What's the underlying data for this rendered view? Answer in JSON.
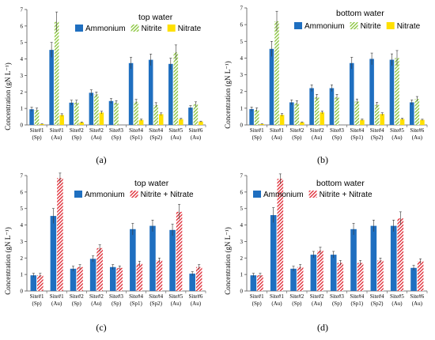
{
  "panels": [
    {
      "id": "a",
      "panel_label": "(a)",
      "chart_data": {
        "type": "bar",
        "title": "top water",
        "ylabel": "Concentration (gN L⁻¹)",
        "ylim": [
          0,
          7
        ],
        "yticks": [
          0,
          1,
          2,
          3,
          4,
          5,
          6,
          7
        ],
        "categories": [
          [
            "Site#1",
            "(Sp)"
          ],
          [
            "Site#1",
            "(Au)"
          ],
          [
            "Site#2",
            "(Sp)"
          ],
          [
            "Site#2",
            "(Au)"
          ],
          [
            "Site#3",
            "(Sp)"
          ],
          [
            "Site#4",
            "(Sp1)"
          ],
          [
            "Site#4",
            "(Sp2)"
          ],
          [
            "Site#5",
            "(Au)"
          ],
          [
            "Site#6",
            "(Au)"
          ]
        ],
        "series": [
          {
            "name": "Ammonium",
            "style": "solid",
            "color": "#1f6fc0",
            "values": [
              0.95,
              4.55,
              1.35,
              1.95,
              1.45,
              3.75,
              3.95,
              3.7,
              1.05
            ],
            "errors": [
              0.12,
              0.45,
              0.15,
              0.18,
              0.15,
              0.35,
              0.35,
              0.35,
              0.12
            ]
          },
          {
            "name": "Nitrite",
            "style": "hatch",
            "color": "#8cc63f",
            "values": [
              0.9,
              6.25,
              1.35,
              1.85,
              1.35,
              1.4,
              1.2,
              4.4,
              1.25
            ],
            "errors": [
              0.12,
              0.6,
              0.15,
              0.15,
              0.12,
              0.15,
              0.15,
              0.45,
              0.15
            ]
          },
          {
            "name": "Nitrate",
            "style": "solid",
            "color": "#ffe000",
            "values": [
              0.05,
              0.6,
              0.15,
              0.75,
              0.0,
              0.3,
              0.65,
              0.35,
              0.2
            ],
            "errors": [
              0.02,
              0.08,
              0.03,
              0.08,
              0.0,
              0.05,
              0.08,
              0.05,
              0.03
            ]
          }
        ],
        "legend": "top-right"
      }
    },
    {
      "id": "b",
      "panel_label": "(b)",
      "chart_data": {
        "type": "bar",
        "title": "bottom water",
        "ylabel": "Concentration (gN L⁻¹)",
        "ylim": [
          0,
          7
        ],
        "yticks": [
          0,
          1,
          2,
          3,
          4,
          5,
          6,
          7
        ],
        "categories": [
          [
            "Site#1",
            "(Sp)"
          ],
          [
            "Site#1",
            "(Au)"
          ],
          [
            "Site#2",
            "(Sp)"
          ],
          [
            "Site#2",
            "(Au)"
          ],
          [
            "Site#3",
            "(Sp)"
          ],
          [
            "Site#4",
            "(Sp1)"
          ],
          [
            "Site#4",
            "(Sp2)"
          ],
          [
            "Site#5",
            "(Au)"
          ],
          [
            "Site#6",
            "(Au)"
          ]
        ],
        "series": [
          {
            "name": "Ammonium",
            "style": "solid",
            "color": "#1f6fc0",
            "values": [
              0.95,
              4.55,
              1.35,
              2.2,
              2.2,
              3.7,
              3.95,
              3.9,
              1.35
            ],
            "errors": [
              0.12,
              0.45,
              0.15,
              0.2,
              0.2,
              0.35,
              0.35,
              0.35,
              0.15
            ]
          },
          {
            "name": "Nitrite",
            "style": "hatch",
            "color": "#8cc63f",
            "values": [
              0.9,
              6.2,
              1.3,
              1.65,
              1.65,
              1.4,
              1.2,
              4.0,
              1.55
            ],
            "errors": [
              0.12,
              0.6,
              0.15,
              0.18,
              0.18,
              0.15,
              0.15,
              0.45,
              0.15
            ]
          },
          {
            "name": "Nitrate",
            "style": "solid",
            "color": "#ffe000",
            "values": [
              0.05,
              0.6,
              0.15,
              0.75,
              0.0,
              0.3,
              0.65,
              0.35,
              0.3
            ],
            "errors": [
              0.02,
              0.08,
              0.03,
              0.08,
              0.0,
              0.05,
              0.08,
              0.05,
              0.04
            ]
          }
        ],
        "legend": "top-right"
      }
    },
    {
      "id": "c",
      "panel_label": "(c)",
      "chart_data": {
        "type": "bar",
        "title": "top water",
        "ylabel": "Concentration (gN L⁻¹)",
        "ylim": [
          0,
          7
        ],
        "yticks": [
          0,
          1,
          2,
          3,
          4,
          5,
          6,
          7
        ],
        "categories": [
          [
            "Site#1",
            "(Sp)"
          ],
          [
            "Site#1",
            "(Au)"
          ],
          [
            "Site#2",
            "(Sp)"
          ],
          [
            "Site#2",
            "(Au)"
          ],
          [
            "Site#3",
            "(Sp)"
          ],
          [
            "Site#4",
            "(Sp1)"
          ],
          [
            "Site#4",
            "(Sp2)"
          ],
          [
            "Site#5",
            "(Au)"
          ],
          [
            "Site#6",
            "(Au)"
          ]
        ],
        "series": [
          {
            "name": "Ammonium",
            "style": "solid",
            "color": "#1f6fc0",
            "values": [
              0.95,
              4.55,
              1.35,
              1.95,
              1.45,
              3.75,
              3.95,
              3.7,
              1.05
            ],
            "errors": [
              0.12,
              0.45,
              0.15,
              0.18,
              0.15,
              0.35,
              0.35,
              0.35,
              0.12
            ]
          },
          {
            "name": "Nitrite + Nitrate",
            "style": "hatch",
            "color": "#e0303a",
            "values": [
              0.95,
              6.85,
              1.45,
              2.6,
              1.4,
              1.65,
              1.85,
              4.8,
              1.45
            ],
            "errors": [
              0.12,
              0.3,
              0.15,
              0.2,
              0.12,
              0.15,
              0.15,
              0.45,
              0.15
            ]
          }
        ],
        "legend": "top-right"
      }
    },
    {
      "id": "d",
      "panel_label": "(d)",
      "chart_data": {
        "type": "bar",
        "title": "bottom water",
        "ylabel": "Concentration (gN L⁻¹)",
        "ylim": [
          0,
          7
        ],
        "yticks": [
          0,
          1,
          2,
          3,
          4,
          5,
          6,
          7
        ],
        "categories": [
          [
            "Site#1",
            "(Sp)"
          ],
          [
            "Site#1",
            "(Au)"
          ],
          [
            "Site#2",
            "(Sp)"
          ],
          [
            "Site#2",
            "(Au)"
          ],
          [
            "Site#3",
            "(Sp)"
          ],
          [
            "Site#4",
            "(Sp1)"
          ],
          [
            "Site#4",
            "(Sp2)"
          ],
          [
            "Site#5",
            "(Au)"
          ],
          [
            "Site#6",
            "(Au)"
          ]
        ],
        "series": [
          {
            "name": "Ammonium",
            "style": "solid",
            "color": "#1f6fc0",
            "values": [
              0.95,
              4.6,
              1.35,
              2.2,
              2.2,
              3.75,
              3.95,
              3.95,
              1.4
            ],
            "errors": [
              0.12,
              0.45,
              0.15,
              0.2,
              0.2,
              0.35,
              0.35,
              0.35,
              0.15
            ]
          },
          {
            "name": "Nitrite + Nitrate",
            "style": "hatch",
            "color": "#e0303a",
            "values": [
              0.95,
              6.8,
              1.45,
              2.45,
              1.7,
              1.7,
              1.85,
              4.4,
              1.8
            ],
            "errors": [
              0.12,
              0.3,
              0.15,
              0.2,
              0.15,
              0.15,
              0.15,
              0.4,
              0.15
            ]
          }
        ],
        "legend": "top-right"
      }
    }
  ]
}
